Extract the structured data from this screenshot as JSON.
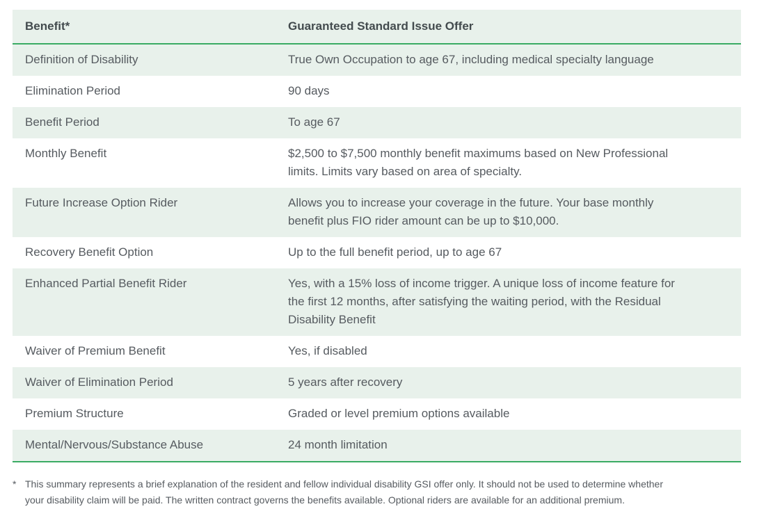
{
  "table": {
    "header": {
      "benefit": "Benefit*",
      "offer": "Guaranteed Standard Issue Offer"
    },
    "rows": [
      {
        "benefit": "Definition of Disability",
        "offer": "True Own Occupation to age 67, including medical specialty language"
      },
      {
        "benefit": "Elimination Period",
        "offer": "90 days"
      },
      {
        "benefit": "Benefit Period",
        "offer": "To age 67"
      },
      {
        "benefit": "Monthly Benefit",
        "offer": "$2,500 to $7,500 monthly benefit maximums based on New Professional\nlimits. Limits vary based on area of specialty."
      },
      {
        "benefit": "Future Increase Option Rider",
        "offer": "Allows you to increase your coverage in the future. Your base monthly\nbenefit plus FIO rider amount can be up to $10,000."
      },
      {
        "benefit": "Recovery Benefit Option",
        "offer": "Up to the full benefit period, up to age 67"
      },
      {
        "benefit": "Enhanced Partial Benefit Rider",
        "offer": "Yes, with a 15% loss of income trigger. A unique loss of income feature for\nthe first 12 months, after satisfying the waiting period, with the Residual\nDisability Benefit"
      },
      {
        "benefit": "Waiver of Premium Benefit",
        "offer": "Yes, if disabled"
      },
      {
        "benefit": "Waiver of Elimination Period",
        "offer": "5 years after recovery"
      },
      {
        "benefit": "Premium Structure",
        "offer": "Graded or level premium options available"
      },
      {
        "benefit": "Mental/Nervous/Substance Abuse",
        "offer": "24 month limitation"
      }
    ]
  },
  "footnote": {
    "marker": "*",
    "text": "This summary represents a brief explanation of the resident and fellow individual disability GSI offer only. It should not be used to determine whether\nyour disability claim will be paid. The written contract governs the benefits available. Optional riders are available for an additional premium."
  },
  "colors": {
    "row_highlight": "#e8f1eb",
    "accent_green": "#3aab63",
    "body_text": "#565b60",
    "header_text": "#434b4e"
  }
}
